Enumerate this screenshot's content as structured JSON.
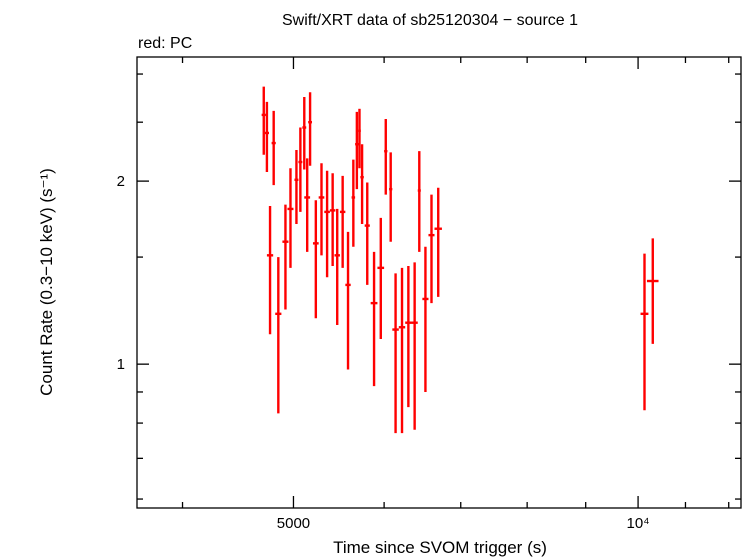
{
  "chart_data": {
    "type": "scatter",
    "title": "Swift/XRT data of sb25120304 − source 1",
    "subtitle": "red: PC",
    "xlabel": "Time since SVOM trigger (s)",
    "ylabel": "Count Rate (0.3−10 keV) (s⁻¹)",
    "x_scale": "log",
    "y_scale": "log",
    "xlim": [
      3650,
      12300
    ],
    "ylim": [
      0.58,
      3.2
    ],
    "x_tick_labels": [
      {
        "value": 5000,
        "text": "5000"
      },
      {
        "value": 10000,
        "text": "10⁴"
      }
    ],
    "y_tick_labels": [
      {
        "value": 1,
        "text": "1"
      },
      {
        "value": 2,
        "text": "2"
      }
    ],
    "x_minor_ticks": [
      4000,
      6000,
      7000,
      8000,
      9000,
      11000,
      12000
    ],
    "y_minor_ticks": [
      0.6,
      0.7,
      0.8,
      0.9,
      1.5,
      2.5,
      3
    ],
    "grid": false,
    "series": [
      {
        "color": "#ff0000",
        "points": [
          {
            "x": 4710,
            "y": 2.57,
            "xerr": [
              20,
              20
            ],
            "ylo": 2.21,
            "yhi": 2.86
          },
          {
            "x": 4740,
            "y": 2.4,
            "xerr": [
              20,
              20
            ],
            "ylo": 2.07,
            "yhi": 2.7
          },
          {
            "x": 4770,
            "y": 1.51,
            "xerr": [
              30,
              30
            ],
            "ylo": 1.12,
            "yhi": 1.82
          },
          {
            "x": 4805,
            "y": 2.31,
            "xerr": [
              20,
              20
            ],
            "ylo": 1.97,
            "yhi": 2.61
          },
          {
            "x": 4850,
            "y": 1.21,
            "xerr": [
              30,
              30
            ],
            "ylo": 0.83,
            "yhi": 1.5
          },
          {
            "x": 4920,
            "y": 1.59,
            "xerr": [
              30,
              30
            ],
            "ylo": 1.23,
            "yhi": 1.83
          },
          {
            "x": 4970,
            "y": 1.8,
            "xerr": [
              30,
              30
            ],
            "ylo": 1.44,
            "yhi": 2.1
          },
          {
            "x": 5030,
            "y": 2.01,
            "xerr": [
              20,
              20
            ],
            "ylo": 1.7,
            "yhi": 2.25
          },
          {
            "x": 5070,
            "y": 2.15,
            "xerr": [
              20,
              20
            ],
            "ylo": 1.78,
            "yhi": 2.45
          },
          {
            "x": 5110,
            "y": 2.45,
            "xerr": [
              20,
              20
            ],
            "ylo": 2.09,
            "yhi": 2.75
          },
          {
            "x": 5140,
            "y": 1.88,
            "xerr": [
              30,
              30
            ],
            "ylo": 1.53,
            "yhi": 2.18
          },
          {
            "x": 5170,
            "y": 2.5,
            "xerr": [
              20,
              20
            ],
            "ylo": 2.12,
            "yhi": 2.8
          },
          {
            "x": 5230,
            "y": 1.58,
            "xerr": [
              30,
              30
            ],
            "ylo": 1.19,
            "yhi": 1.86
          },
          {
            "x": 5290,
            "y": 1.88,
            "xerr": [
              30,
              30
            ],
            "ylo": 1.51,
            "yhi": 2.14
          },
          {
            "x": 5350,
            "y": 1.78,
            "xerr": [
              30,
              30
            ],
            "ylo": 1.39,
            "yhi": 2.08
          },
          {
            "x": 5410,
            "y": 1.79,
            "xerr": [
              30,
              30
            ],
            "ylo": 1.45,
            "yhi": 2.06
          },
          {
            "x": 5460,
            "y": 1.51,
            "xerr": [
              30,
              30
            ],
            "ylo": 1.16,
            "yhi": 1.8
          },
          {
            "x": 5520,
            "y": 1.78,
            "xerr": [
              30,
              30
            ],
            "ylo": 1.44,
            "yhi": 2.04
          },
          {
            "x": 5580,
            "y": 1.35,
            "xerr": [
              30,
              30
            ],
            "ylo": 0.98,
            "yhi": 1.65
          },
          {
            "x": 5640,
            "y": 1.88,
            "xerr": [
              20,
              20
            ],
            "ylo": 1.56,
            "yhi": 2.17
          },
          {
            "x": 5680,
            "y": 2.3,
            "xerr": [
              20,
              20
            ],
            "ylo": 1.94,
            "yhi": 2.6
          },
          {
            "x": 5710,
            "y": 2.42,
            "xerr": [
              15,
              15
            ],
            "ylo": 2.1,
            "yhi": 2.63
          },
          {
            "x": 5740,
            "y": 2.03,
            "xerr": [
              20,
              20
            ],
            "ylo": 1.7,
            "yhi": 2.3
          },
          {
            "x": 5800,
            "y": 1.69,
            "xerr": [
              30,
              30
            ],
            "ylo": 1.35,
            "yhi": 1.99
          },
          {
            "x": 5880,
            "y": 1.26,
            "xerr": [
              40,
              40
            ],
            "ylo": 0.92,
            "yhi": 1.53
          },
          {
            "x": 5960,
            "y": 1.44,
            "xerr": [
              40,
              40
            ],
            "ylo": 1.1,
            "yhi": 1.74
          },
          {
            "x": 6020,
            "y": 2.24,
            "xerr": [
              20,
              20
            ],
            "ylo": 1.9,
            "yhi": 2.53
          },
          {
            "x": 6080,
            "y": 1.94,
            "xerr": [
              20,
              20
            ],
            "ylo": 1.59,
            "yhi": 2.23
          },
          {
            "x": 6140,
            "y": 1.14,
            "xerr": [
              40,
              40
            ],
            "ylo": 0.77,
            "yhi": 1.41
          },
          {
            "x": 6220,
            "y": 1.15,
            "xerr": [
              40,
              40
            ],
            "ylo": 0.77,
            "yhi": 1.44
          },
          {
            "x": 6300,
            "y": 1.17,
            "xerr": [
              40,
              40
            ],
            "ylo": 0.85,
            "yhi": 1.45
          },
          {
            "x": 6380,
            "y": 1.17,
            "xerr": [
              40,
              40
            ],
            "ylo": 0.78,
            "yhi": 1.47
          },
          {
            "x": 6440,
            "y": 1.93,
            "xerr": [
              20,
              20
            ],
            "ylo": 1.53,
            "yhi": 2.24
          },
          {
            "x": 6520,
            "y": 1.28,
            "xerr": [
              40,
              40
            ],
            "ylo": 0.9,
            "yhi": 1.56
          },
          {
            "x": 6600,
            "y": 1.63,
            "xerr": [
              40,
              40
            ],
            "ylo": 1.26,
            "yhi": 1.9
          },
          {
            "x": 6690,
            "y": 1.67,
            "xerr": [
              50,
              50
            ],
            "ylo": 1.29,
            "yhi": 1.95
          },
          {
            "x": 10130,
            "y": 1.21,
            "xerr": [
              80,
              80
            ],
            "ylo": 0.84,
            "yhi": 1.52
          },
          {
            "x": 10300,
            "y": 1.37,
            "xerr": [
              120,
              120
            ],
            "ylo": 1.08,
            "yhi": 1.61
          }
        ]
      }
    ]
  }
}
